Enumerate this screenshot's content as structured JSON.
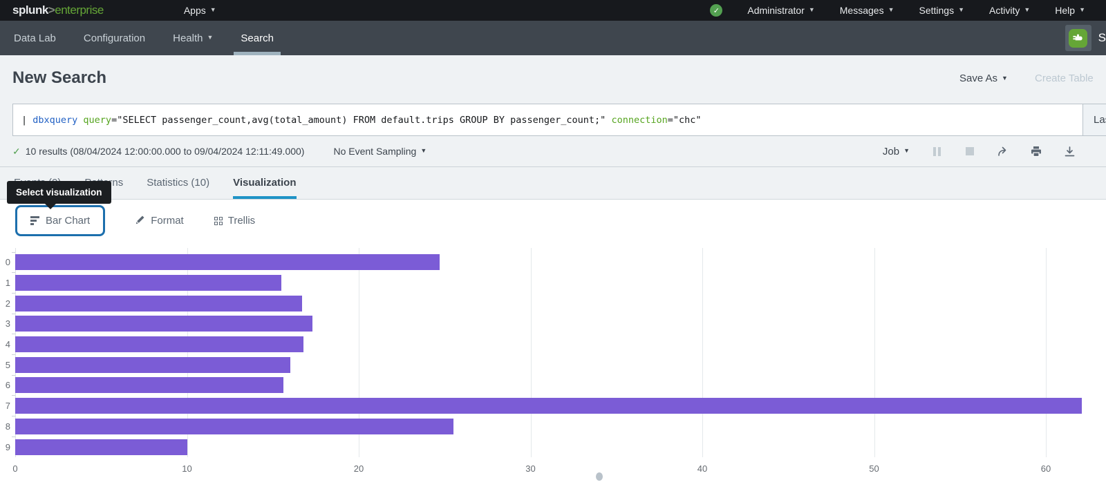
{
  "topbar": {
    "logo": {
      "brand": "splunk",
      "gt": ">",
      "product": "enterprise"
    },
    "apps_menu": "Apps",
    "menus": [
      "Administrator",
      "Messages",
      "Settings",
      "Activity",
      "Help"
    ],
    "status_check": "✓"
  },
  "appbar": {
    "items": [
      {
        "label": "Data Lab"
      },
      {
        "label": "Configuration"
      },
      {
        "label": "Health"
      },
      {
        "label": "Search"
      }
    ],
    "app_name_partial": "S"
  },
  "header": {
    "title": "New Search",
    "save_as": "Save As",
    "create_table": "Create Table"
  },
  "search": {
    "query_segments": [
      {
        "text": "| ",
        "color": "#16181b"
      },
      {
        "text": "dbxquery",
        "color": "#2160c4"
      },
      {
        "text": " query",
        "color": "#55a41e"
      },
      {
        "text": "=\"SELECT passenger_count,avg(total_amount) FROM default.trips GROUP BY passenger_count;\"",
        "color": "#16181b"
      },
      {
        "text": " connection",
        "color": "#55a41e"
      },
      {
        "text": "=\"chc\"",
        "color": "#16181b"
      }
    ],
    "time_range": "Last"
  },
  "results_bar": {
    "check": "✓",
    "summary": "10 results (08/04/2024 12:00:00.000 to 09/04/2024 12:11:49.000)",
    "sampling": "No Event Sampling",
    "job": "Job"
  },
  "tabs": [
    {
      "label": "Events (0)"
    },
    {
      "label": "Patterns"
    },
    {
      "label": "Statistics (10)"
    },
    {
      "label": "Visualization",
      "active": true
    }
  ],
  "tooltip": {
    "text": "Select visualization"
  },
  "viz_toolbar": {
    "chart_type": "Bar Chart",
    "format": "Format",
    "trellis": "Trellis"
  },
  "colors": {
    "bar": "#7b5cd6",
    "active_tab_underline": "#1e93c6",
    "focus_ring": "#1c6fad",
    "splunk_green": "#65a637",
    "success_green": "#53a051"
  },
  "chart_data": {
    "type": "bar",
    "orientation": "horizontal",
    "title": "",
    "xlabel": "",
    "ylabel": "",
    "categories": [
      "0",
      "1",
      "2",
      "3",
      "4",
      "5",
      "6",
      "7",
      "8",
      "9"
    ],
    "values": [
      24.7,
      15.5,
      16.7,
      17.3,
      16.8,
      16.0,
      15.6,
      62.1,
      25.5,
      10.0
    ],
    "x_ticks": [
      0,
      10,
      20,
      30,
      40,
      50,
      60
    ],
    "xlim": [
      0,
      63.5
    ],
    "grid": true,
    "legend": false,
    "bar_color": "#7b5cd6"
  }
}
